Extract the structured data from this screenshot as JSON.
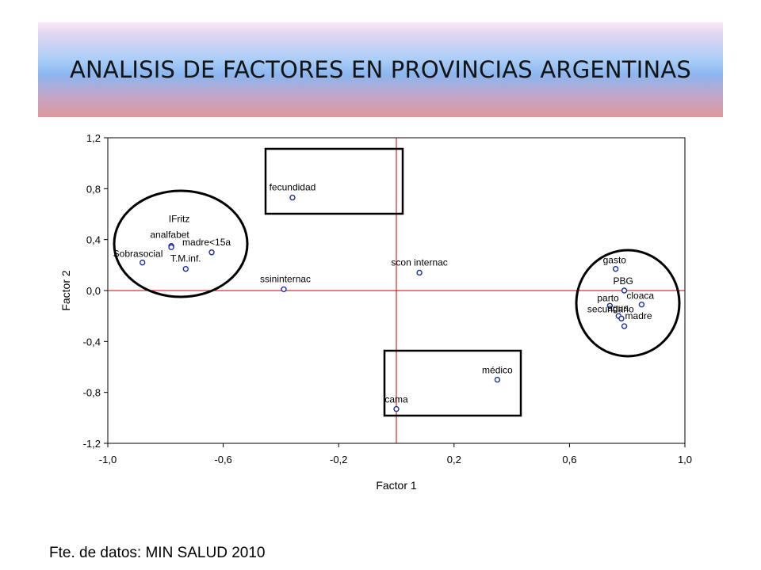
{
  "title": "ANALISIS DE FACTORES EN PROVINCIAS ARGENTINAS",
  "source": "Fte. de datos: MIN SALUD 2010",
  "colors": {
    "reference_line": "#cc0000",
    "marker": "#1a2fa0",
    "frame": "#000000"
  },
  "chart_data": {
    "type": "scatter",
    "xlabel": "Factor 1",
    "ylabel": "Factor 2",
    "xlim": [
      -1.0,
      1.0
    ],
    "ylim": [
      -1.2,
      1.2
    ],
    "xticks": [
      "-1,0",
      "-0,6",
      "-0,2",
      "0,2",
      "0,6",
      "1,0"
    ],
    "yticks": [
      "1,2",
      "0,8",
      "0,4",
      "0,0",
      "-0,4",
      "-0,8",
      "-1,2"
    ],
    "reference_lines": {
      "x": 0.0,
      "y": 0.0
    },
    "points": [
      {
        "label": "fecundidad",
        "x": -0.36,
        "y": 0.73
      },
      {
        "label": "IFritz",
        "x": -0.78,
        "y": 0.35
      },
      {
        "label": "analfabet",
        "x": -0.78,
        "y": 0.34
      },
      {
        "label": "madre<15a",
        "x": -0.64,
        "y": 0.3
      },
      {
        "label": "Sobrasocial",
        "x": -0.88,
        "y": 0.22
      },
      {
        "label": "T.M.inf.",
        "x": -0.73,
        "y": 0.17
      },
      {
        "label": "ssininternac",
        "x": -0.39,
        "y": 0.01
      },
      {
        "label": "scon internac",
        "x": 0.08,
        "y": 0.14
      },
      {
        "label": "gasto",
        "x": 0.76,
        "y": 0.17
      },
      {
        "label": "PBG",
        "x": 0.79,
        "y": 0.0
      },
      {
        "label": "cloaca",
        "x": 0.85,
        "y": -0.11
      },
      {
        "label": "parto",
        "x": 0.74,
        "y": -0.12
      },
      {
        "label": "agua",
        "x": 0.77,
        "y": -0.2
      },
      {
        "label": "secundario",
        "x": 0.78,
        "y": -0.22
      },
      {
        "label": "madre",
        "x": 0.79,
        "y": -0.28
      },
      {
        "label": "médico",
        "x": 0.35,
        "y": -0.7
      },
      {
        "label": "cama",
        "x": 0.0,
        "y": -0.93
      }
    ],
    "highlights": [
      {
        "shape": "ellipse",
        "group": "left"
      },
      {
        "shape": "rectangle",
        "group": "top"
      },
      {
        "shape": "rectangle",
        "group": "bottom"
      },
      {
        "shape": "ellipse",
        "group": "right"
      }
    ]
  }
}
